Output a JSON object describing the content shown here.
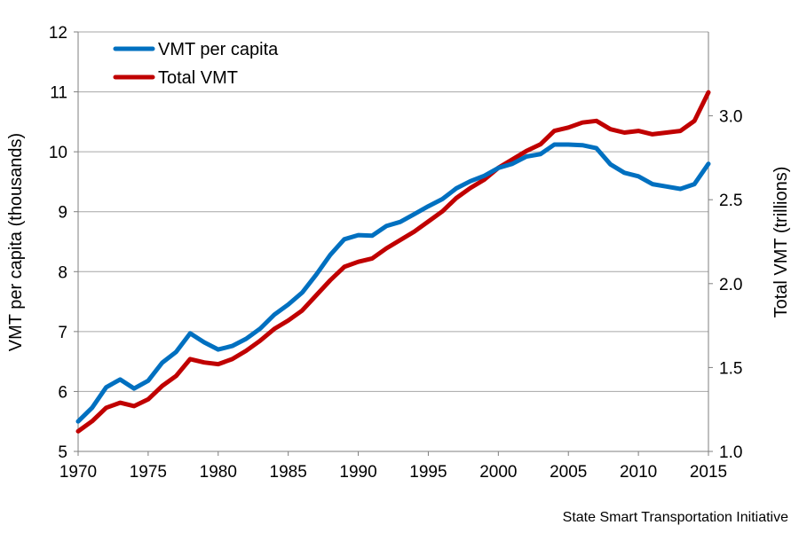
{
  "chart_data": {
    "type": "line",
    "x": [
      1970,
      1971,
      1972,
      1973,
      1974,
      1975,
      1976,
      1977,
      1978,
      1979,
      1980,
      1981,
      1982,
      1983,
      1984,
      1985,
      1986,
      1987,
      1988,
      1989,
      1990,
      1991,
      1992,
      1993,
      1994,
      1995,
      1996,
      1997,
      1998,
      1999,
      2000,
      2001,
      2002,
      2003,
      2004,
      2005,
      2006,
      2007,
      2008,
      2009,
      2010,
      2011,
      2012,
      2013,
      2014,
      2015
    ],
    "series": [
      {
        "name": "VMT per capita",
        "axis": "left",
        "color": "#0070C0",
        "values": [
          5.5,
          5.73,
          6.07,
          6.2,
          6.05,
          6.18,
          6.48,
          6.66,
          6.97,
          6.82,
          6.7,
          6.76,
          6.88,
          7.05,
          7.28,
          7.45,
          7.65,
          7.95,
          8.28,
          8.54,
          8.61,
          8.6,
          8.76,
          8.83,
          8.96,
          9.09,
          9.21,
          9.39,
          9.51,
          9.6,
          9.73,
          9.8,
          9.92,
          9.96,
          10.12,
          10.12,
          10.11,
          10.06,
          9.79,
          9.65,
          9.59,
          9.46,
          9.42,
          9.38,
          9.46,
          9.8
        ]
      },
      {
        "name": "Total VMT",
        "axis": "right",
        "color": "#C00000",
        "values": [
          1.12,
          1.18,
          1.26,
          1.29,
          1.27,
          1.31,
          1.39,
          1.45,
          1.55,
          1.53,
          1.52,
          1.55,
          1.6,
          1.66,
          1.73,
          1.78,
          1.84,
          1.93,
          2.02,
          2.1,
          2.13,
          2.15,
          2.21,
          2.26,
          2.31,
          2.37,
          2.43,
          2.51,
          2.57,
          2.62,
          2.69,
          2.74,
          2.79,
          2.83,
          2.91,
          2.93,
          2.96,
          2.97,
          2.92,
          2.9,
          2.91,
          2.89,
          2.9,
          2.91,
          2.97,
          3.14
        ]
      }
    ],
    "xlim": [
      1970,
      2015
    ],
    "ylim_left": [
      5,
      12
    ],
    "ylim_right": [
      1.0,
      3.5
    ],
    "x_ticks": [
      "1970",
      "1975",
      "1980",
      "1985",
      "1990",
      "1995",
      "2000",
      "2005",
      "2010",
      "2015"
    ],
    "y_ticks_left": [
      "5",
      "6",
      "7",
      "8",
      "9",
      "10",
      "11",
      "12"
    ],
    "y_ticks_right": [
      "1.0",
      "1.5",
      "2.0",
      "2.5",
      "3.0"
    ],
    "ylabel_left": "VMT per capita (thousands)",
    "ylabel_right": "Total VMT (trillions)",
    "grid": true,
    "legend_position": "top-left",
    "gridline_color": "#a6a6a6"
  },
  "credit": "State Smart Transportation Initiative"
}
